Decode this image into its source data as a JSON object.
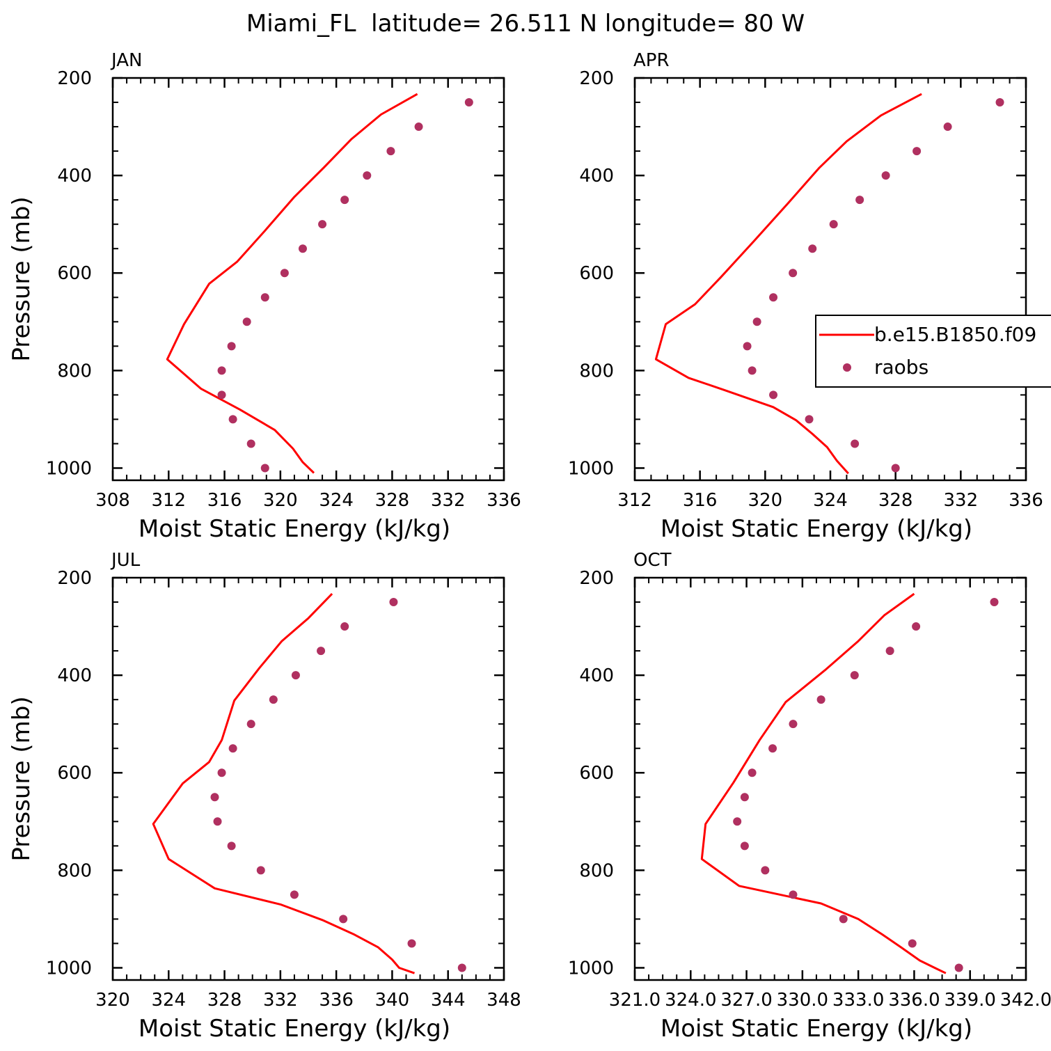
{
  "figure": {
    "title": "Miami_FL  latitude= 26.511 N longitude= 80 W"
  },
  "legend": {
    "entries": [
      {
        "label": "b.e15.B1850.f09",
        "kind": "line",
        "color": "#ff0000"
      },
      {
        "label": "raobs",
        "kind": "marker",
        "color": "#b03060"
      }
    ],
    "panel": "APR",
    "position": "right"
  },
  "chart_data": [
    {
      "type": "line",
      "panel_title": "JAN",
      "xlabel": "Moist Static Energy (kJ/kg)",
      "ylabel": "Pressure (mb)",
      "xlim": [
        308,
        336
      ],
      "xticks": [
        "308",
        "312",
        "316",
        "320",
        "324",
        "328",
        "332",
        "336"
      ],
      "ylim": [
        200,
        1025
      ],
      "y_inverted": true,
      "yticks": [
        "200",
        "400",
        "600",
        "800",
        "1000"
      ],
      "series": [
        {
          "name": "b.e15.B1850.f09",
          "style": "line",
          "color": "#ff0000",
          "points": [
            [
              329.8,
              233
            ],
            [
              327.2,
              275
            ],
            [
              325.1,
              325
            ],
            [
              323.1,
              384
            ],
            [
              321.0,
              444
            ],
            [
              318.9,
              513
            ],
            [
              316.9,
              577
            ],
            [
              314.9,
              622
            ],
            [
              313.1,
              705
            ],
            [
              311.9,
              777
            ],
            [
              314.3,
              837
            ],
            [
              317.1,
              880
            ],
            [
              319.6,
              922
            ],
            [
              320.9,
              960
            ],
            [
              321.6,
              988
            ],
            [
              322.4,
              1010
            ]
          ]
        },
        {
          "name": "raobs",
          "style": "marker",
          "color": "#b03060",
          "points": [
            [
              333.5,
              250
            ],
            [
              329.9,
              300
            ],
            [
              327.9,
              350
            ],
            [
              326.2,
              400
            ],
            [
              324.6,
              450
            ],
            [
              323.0,
              500
            ],
            [
              321.6,
              550
            ],
            [
              320.3,
              600
            ],
            [
              318.9,
              650
            ],
            [
              317.6,
              700
            ],
            [
              316.5,
              750
            ],
            [
              315.8,
              800
            ],
            [
              315.8,
              850
            ],
            [
              316.6,
              900
            ],
            [
              317.9,
              950
            ],
            [
              318.9,
              1000
            ]
          ]
        }
      ]
    },
    {
      "type": "line",
      "panel_title": "APR",
      "xlabel": "Moist Static Energy (kJ/kg)",
      "ylabel": "",
      "xlim": [
        312,
        336
      ],
      "xticks": [
        "312",
        "316",
        "320",
        "324",
        "328",
        "332",
        "336"
      ],
      "ylim": [
        200,
        1025
      ],
      "y_inverted": true,
      "yticks": [
        "200",
        "400",
        "600",
        "800",
        "1000"
      ],
      "series": [
        {
          "name": "b.e15.B1850.f09",
          "style": "line",
          "color": "#ff0000",
          "points": [
            [
              329.6,
              233
            ],
            [
              327.1,
              277
            ],
            [
              325.0,
              330
            ],
            [
              323.3,
              385
            ],
            [
              321.4,
              457
            ],
            [
              319.3,
              535
            ],
            [
              317.3,
              608
            ],
            [
              315.7,
              664
            ],
            [
              313.9,
              705
            ],
            [
              313.3,
              777
            ],
            [
              315.3,
              815
            ],
            [
              317.5,
              840
            ],
            [
              320.5,
              875
            ],
            [
              321.9,
              902
            ],
            [
              322.9,
              930
            ],
            [
              323.8,
              957
            ],
            [
              324.4,
              985
            ],
            [
              325.1,
              1011
            ]
          ]
        },
        {
          "name": "raobs",
          "style": "marker",
          "color": "#b03060",
          "points": [
            [
              334.4,
              250
            ],
            [
              331.2,
              300
            ],
            [
              329.3,
              350
            ],
            [
              327.4,
              400
            ],
            [
              325.8,
              450
            ],
            [
              324.2,
              500
            ],
            [
              322.9,
              550
            ],
            [
              321.7,
              600
            ],
            [
              320.5,
              650
            ],
            [
              319.5,
              700
            ],
            [
              318.9,
              750
            ],
            [
              319.2,
              800
            ],
            [
              320.5,
              850
            ],
            [
              322.7,
              900
            ],
            [
              325.5,
              950
            ],
            [
              328.0,
              1000
            ]
          ]
        }
      ]
    },
    {
      "type": "line",
      "panel_title": "JUL",
      "xlabel": "Moist Static Energy (kJ/kg)",
      "ylabel": "Pressure (mb)",
      "xlim": [
        320,
        348
      ],
      "xticks": [
        "320",
        "324",
        "328",
        "332",
        "336",
        "340",
        "344",
        "348"
      ],
      "ylim": [
        200,
        1025
      ],
      "y_inverted": true,
      "yticks": [
        "200",
        "400",
        "600",
        "800",
        "1000"
      ],
      "series": [
        {
          "name": "b.e15.B1850.f09",
          "style": "line",
          "color": "#ff0000",
          "points": [
            [
              335.7,
              233
            ],
            [
              334.0,
              283
            ],
            [
              332.1,
              330
            ],
            [
              330.5,
              385
            ],
            [
              328.7,
              452
            ],
            [
              327.8,
              533
            ],
            [
              326.9,
              578
            ],
            [
              325.0,
              622
            ],
            [
              322.9,
              705
            ],
            [
              324.0,
              777
            ],
            [
              327.3,
              837
            ],
            [
              332.0,
              870
            ],
            [
              335.0,
              902
            ],
            [
              337.3,
              932
            ],
            [
              339.0,
              958
            ],
            [
              340.0,
              983
            ],
            [
              340.5,
              1000
            ],
            [
              341.6,
              1011
            ]
          ]
        },
        {
          "name": "raobs",
          "style": "marker",
          "color": "#b03060",
          "points": [
            [
              340.1,
              250
            ],
            [
              336.6,
              300
            ],
            [
              334.9,
              350
            ],
            [
              333.1,
              400
            ],
            [
              331.5,
              450
            ],
            [
              329.9,
              500
            ],
            [
              328.6,
              550
            ],
            [
              327.8,
              600
            ],
            [
              327.3,
              650
            ],
            [
              327.5,
              700
            ],
            [
              328.5,
              750
            ],
            [
              330.6,
              800
            ],
            [
              333.0,
              850
            ],
            [
              336.5,
              900
            ],
            [
              341.4,
              950
            ],
            [
              345.0,
              1000
            ]
          ]
        }
      ]
    },
    {
      "type": "line",
      "panel_title": "OCT",
      "xlabel": "Moist Static Energy (kJ/kg)",
      "ylabel": "",
      "xlim": [
        321.0,
        342.0
      ],
      "xticks": [
        "321.0",
        "324.0",
        "327.0",
        "330.0",
        "333.0",
        "336.0",
        "339.0",
        "342.0"
      ],
      "ylim": [
        200,
        1025
      ],
      "y_inverted": true,
      "yticks": [
        "200",
        "400",
        "600",
        "800",
        "1000"
      ],
      "series": [
        {
          "name": "b.e15.B1850.f09",
          "style": "line",
          "color": "#ff0000",
          "points": [
            [
              336.0,
              233
            ],
            [
              334.4,
              277
            ],
            [
              333.0,
              330
            ],
            [
              331.2,
              390
            ],
            [
              329.1,
              455
            ],
            [
              327.7,
              533
            ],
            [
              326.3,
              620
            ],
            [
              324.8,
              705
            ],
            [
              324.6,
              777
            ],
            [
              326.6,
              832
            ],
            [
              331.0,
              868
            ],
            [
              333.0,
              900
            ],
            [
              334.3,
              932
            ],
            [
              335.3,
              958
            ],
            [
              336.3,
              985
            ],
            [
              337.1,
              1000
            ],
            [
              337.7,
              1011
            ]
          ]
        },
        {
          "name": "raobs",
          "style": "marker",
          "color": "#b03060",
          "points": [
            [
              340.3,
              250
            ],
            [
              336.1,
              300
            ],
            [
              334.7,
              350
            ],
            [
              332.8,
              400
            ],
            [
              331.0,
              450
            ],
            [
              329.5,
              500
            ],
            [
              328.4,
              550
            ],
            [
              327.3,
              600
            ],
            [
              326.9,
              650
            ],
            [
              326.5,
              700
            ],
            [
              326.9,
              750
            ],
            [
              328.0,
              800
            ],
            [
              329.5,
              850
            ],
            [
              332.2,
              900
            ],
            [
              335.9,
              950
            ],
            [
              338.4,
              1000
            ]
          ]
        }
      ]
    }
  ]
}
